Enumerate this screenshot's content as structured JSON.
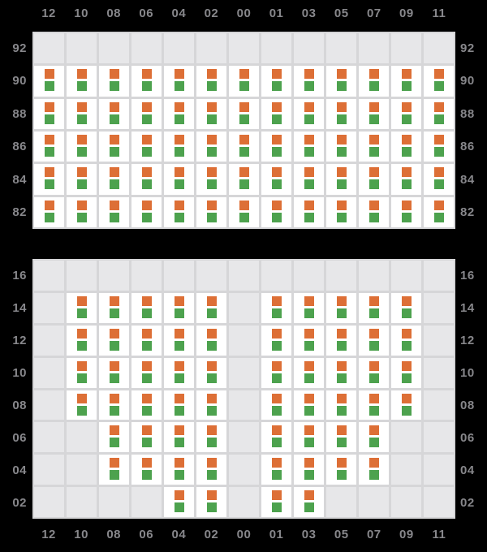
{
  "page": {
    "background_color": "#000000",
    "label_color": "#87878b"
  },
  "colors": {
    "orange_square": "#dd6f36",
    "green_square": "#4da24e",
    "empty_cell": "#e7e7e9",
    "filled_cell": "#ffffff",
    "gridline": "#d6d6d8",
    "axis_label": "#87878b",
    "background": "#000000"
  },
  "chart_data": [
    {
      "type": "heatmap",
      "panel": "upper",
      "title": "",
      "column_axis_position": "top",
      "row_axis_positions": [
        "left",
        "right"
      ],
      "grid": "on",
      "legend": "none",
      "columns": [
        "12",
        "10",
        "08",
        "06",
        "04",
        "02",
        "00",
        "01",
        "03",
        "05",
        "07",
        "09",
        "11"
      ],
      "row_labels": [
        "92",
        "90",
        "88",
        "86",
        "84",
        "82"
      ],
      "cell_marks_per_occupied_cell": [
        {
          "name": "orange-status-square",
          "color": "#dd6f36"
        },
        {
          "name": "green-status-square",
          "color": "#4da24e"
        }
      ],
      "occupancy_note": "1 = white cell containing orange square above green square; 0 = plain gray cell",
      "cells": [
        [
          0,
          0,
          0,
          0,
          0,
          0,
          0,
          0,
          0,
          0,
          0,
          0,
          0
        ],
        [
          1,
          1,
          1,
          1,
          1,
          1,
          1,
          1,
          1,
          1,
          1,
          1,
          1
        ],
        [
          1,
          1,
          1,
          1,
          1,
          1,
          1,
          1,
          1,
          1,
          1,
          1,
          1
        ],
        [
          1,
          1,
          1,
          1,
          1,
          1,
          1,
          1,
          1,
          1,
          1,
          1,
          1
        ],
        [
          1,
          1,
          1,
          1,
          1,
          1,
          1,
          1,
          1,
          1,
          1,
          1,
          1
        ],
        [
          1,
          1,
          1,
          1,
          1,
          1,
          1,
          1,
          1,
          1,
          1,
          1,
          1
        ]
      ]
    },
    {
      "type": "heatmap",
      "panel": "lower",
      "title": "",
      "column_axis_position": "bottom",
      "row_axis_positions": [
        "left",
        "right"
      ],
      "grid": "on",
      "legend": "none",
      "columns": [
        "12",
        "10",
        "08",
        "06",
        "04",
        "02",
        "00",
        "01",
        "03",
        "05",
        "07",
        "09",
        "11"
      ],
      "row_labels": [
        "16",
        "14",
        "12",
        "10",
        "08",
        "06",
        "04",
        "02"
      ],
      "cell_marks_per_occupied_cell": [
        {
          "name": "orange-status-square",
          "color": "#dd6f36"
        },
        {
          "name": "green-status-square",
          "color": "#4da24e"
        }
      ],
      "occupancy_note": "1 = white cell containing orange square above green square; 0 = plain gray cell",
      "cells": [
        [
          0,
          0,
          0,
          0,
          0,
          0,
          0,
          0,
          0,
          0,
          0,
          0,
          0
        ],
        [
          0,
          1,
          1,
          1,
          1,
          1,
          0,
          1,
          1,
          1,
          1,
          1,
          0
        ],
        [
          0,
          1,
          1,
          1,
          1,
          1,
          0,
          1,
          1,
          1,
          1,
          1,
          0
        ],
        [
          0,
          1,
          1,
          1,
          1,
          1,
          0,
          1,
          1,
          1,
          1,
          1,
          0
        ],
        [
          0,
          1,
          1,
          1,
          1,
          1,
          0,
          1,
          1,
          1,
          1,
          1,
          0
        ],
        [
          0,
          0,
          1,
          1,
          1,
          1,
          0,
          1,
          1,
          1,
          1,
          0,
          0
        ],
        [
          0,
          0,
          1,
          1,
          1,
          1,
          0,
          1,
          1,
          1,
          1,
          0,
          0
        ],
        [
          0,
          0,
          0,
          0,
          1,
          1,
          0,
          1,
          1,
          0,
          0,
          0,
          0
        ]
      ]
    }
  ]
}
